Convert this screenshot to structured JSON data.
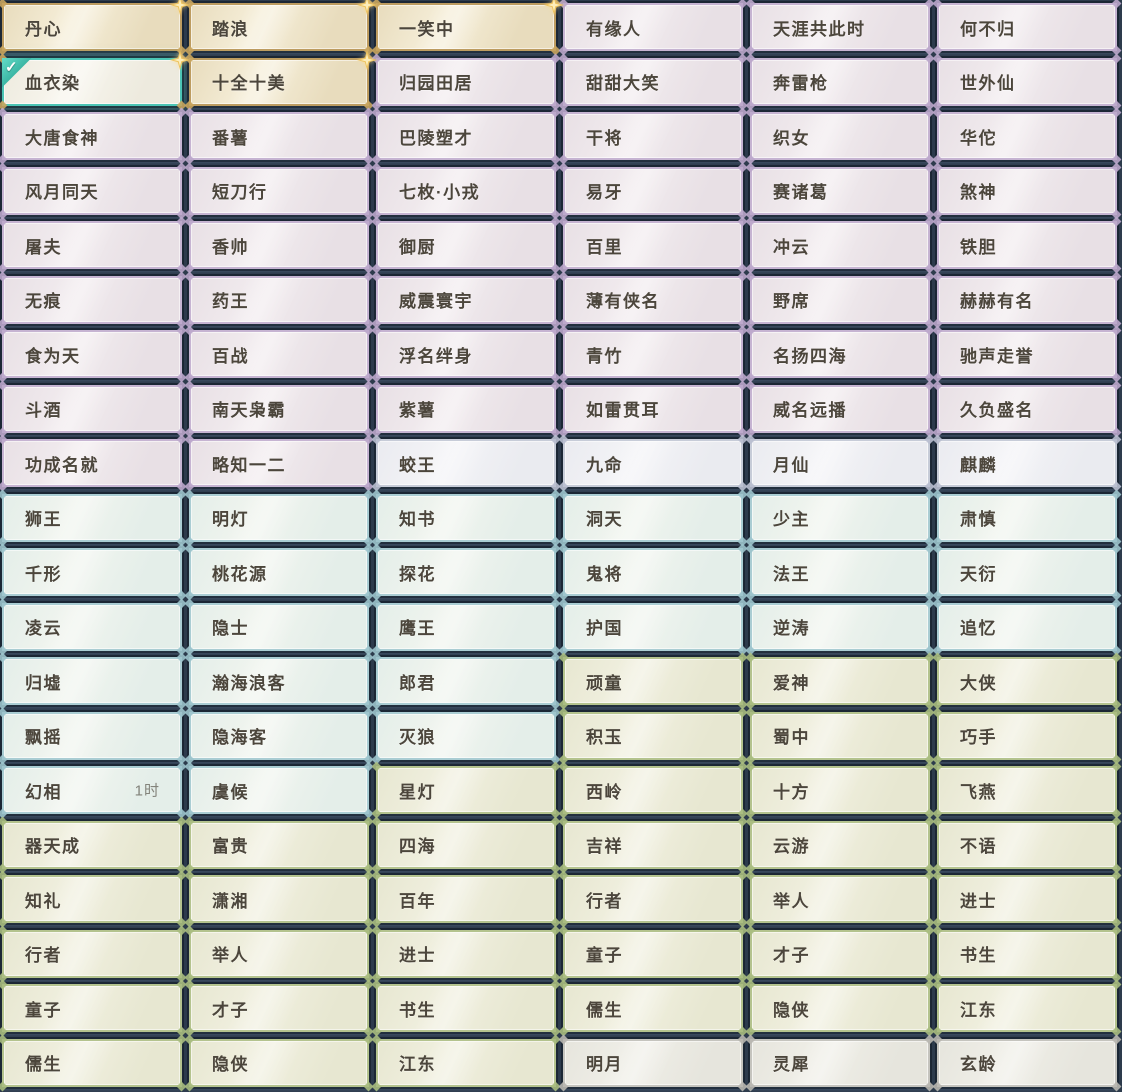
{
  "page": {
    "background": "#2d3b4c",
    "description_colors": {
      "gap_dark_edge": "#141f2b",
      "sheen_white": "#ffffff"
    }
  },
  "icons": {
    "check": "✓",
    "sparkle": "four-point-star"
  },
  "tiers": {
    "gold": {
      "border": "#bd9c60",
      "bg1": "#e8dcbd",
      "bg2": "#f6efda",
      "ornament": "#c9a55e"
    },
    "purple": {
      "border": "#c6b4d2",
      "bg1": "#e8e0e5",
      "bg2": "#f2ecef",
      "ornament": "#bba7cb"
    },
    "silver": {
      "border": "#c7ccd8",
      "bg1": "#eaebf0",
      "bg2": "#f4f4f7",
      "ornament": "#b9bfd0"
    },
    "blue": {
      "border": "#aacdd3",
      "bg1": "#e4eee9",
      "bg2": "#f1f5ef",
      "ornament": "#9cc4cc"
    },
    "green": {
      "border": "#b4c38e",
      "bg1": "#e7e7d1",
      "bg2": "#f1f0e0",
      "ornament": "#a9bc7f"
    },
    "gray": {
      "border": "#c5c4be",
      "bg1": "#e6e5dd",
      "bg2": "#f0efe8",
      "ornament": "#b8b7b0"
    }
  },
  "selected_border": "#4cc5b5",
  "selected_title": "血衣染",
  "grid": {
    "columns": 6,
    "rows": [
      [
        {
          "label": "丹心",
          "tier": "gold"
        },
        {
          "label": "踏浪",
          "tier": "gold"
        },
        {
          "label": "一笑中",
          "tier": "gold"
        },
        {
          "label": "有缘人",
          "tier": "purple"
        },
        {
          "label": "天涯共此时",
          "tier": "purple"
        },
        {
          "label": "何不归",
          "tier": "purple"
        }
      ],
      [
        {
          "label": "血衣染",
          "tier": "gold",
          "selected": true
        },
        {
          "label": "十全十美",
          "tier": "gold"
        },
        {
          "label": "归园田居",
          "tier": "purple"
        },
        {
          "label": "甜甜大笑",
          "tier": "purple"
        },
        {
          "label": "奔雷枪",
          "tier": "purple"
        },
        {
          "label": "世外仙",
          "tier": "purple"
        }
      ],
      [
        {
          "label": "大唐食神",
          "tier": "purple"
        },
        {
          "label": "番薯",
          "tier": "purple"
        },
        {
          "label": "巴陵塑才",
          "tier": "purple"
        },
        {
          "label": "干将",
          "tier": "purple"
        },
        {
          "label": "织女",
          "tier": "purple"
        },
        {
          "label": "华佗",
          "tier": "purple"
        }
      ],
      [
        {
          "label": "风月同天",
          "tier": "purple"
        },
        {
          "label": "短刀行",
          "tier": "purple"
        },
        {
          "label": "七枚·小戎",
          "tier": "purple"
        },
        {
          "label": "易牙",
          "tier": "purple"
        },
        {
          "label": "赛诸葛",
          "tier": "purple"
        },
        {
          "label": "煞神",
          "tier": "purple"
        }
      ],
      [
        {
          "label": "屠夫",
          "tier": "purple"
        },
        {
          "label": "香帅",
          "tier": "purple"
        },
        {
          "label": "御厨",
          "tier": "purple"
        },
        {
          "label": "百里",
          "tier": "purple"
        },
        {
          "label": "冲云",
          "tier": "purple"
        },
        {
          "label": "铁胆",
          "tier": "purple"
        }
      ],
      [
        {
          "label": "无痕",
          "tier": "purple"
        },
        {
          "label": "药王",
          "tier": "purple"
        },
        {
          "label": "威震寰宇",
          "tier": "purple"
        },
        {
          "label": "薄有侠名",
          "tier": "purple"
        },
        {
          "label": "野席",
          "tier": "purple"
        },
        {
          "label": "赫赫有名",
          "tier": "purple"
        }
      ],
      [
        {
          "label": "食为天",
          "tier": "purple"
        },
        {
          "label": "百战",
          "tier": "purple"
        },
        {
          "label": "浮名绊身",
          "tier": "purple"
        },
        {
          "label": "青竹",
          "tier": "purple"
        },
        {
          "label": "名扬四海",
          "tier": "purple"
        },
        {
          "label": "驰声走誉",
          "tier": "purple"
        }
      ],
      [
        {
          "label": "斗酒",
          "tier": "purple"
        },
        {
          "label": "南天枭霸",
          "tier": "purple"
        },
        {
          "label": "紫薯",
          "tier": "purple"
        },
        {
          "label": "如雷贯耳",
          "tier": "purple"
        },
        {
          "label": "威名远播",
          "tier": "purple"
        },
        {
          "label": "久负盛名",
          "tier": "purple"
        }
      ],
      [
        {
          "label": "功成名就",
          "tier": "purple"
        },
        {
          "label": "略知一二",
          "tier": "purple"
        },
        {
          "label": "蛟王",
          "tier": "silver"
        },
        {
          "label": "九命",
          "tier": "silver"
        },
        {
          "label": "月仙",
          "tier": "silver"
        },
        {
          "label": "麒麟",
          "tier": "silver"
        }
      ],
      [
        {
          "label": "狮王",
          "tier": "blue"
        },
        {
          "label": "明灯",
          "tier": "blue"
        },
        {
          "label": "知书",
          "tier": "blue"
        },
        {
          "label": "洞天",
          "tier": "blue"
        },
        {
          "label": "少主",
          "tier": "blue"
        },
        {
          "label": "肃慎",
          "tier": "blue"
        }
      ],
      [
        {
          "label": "千形",
          "tier": "blue"
        },
        {
          "label": "桃花源",
          "tier": "blue"
        },
        {
          "label": "探花",
          "tier": "blue"
        },
        {
          "label": "鬼将",
          "tier": "blue"
        },
        {
          "label": "法王",
          "tier": "blue"
        },
        {
          "label": "天衍",
          "tier": "blue"
        }
      ],
      [
        {
          "label": "凌云",
          "tier": "blue"
        },
        {
          "label": "隐士",
          "tier": "blue"
        },
        {
          "label": "鹰王",
          "tier": "blue"
        },
        {
          "label": "护国",
          "tier": "blue"
        },
        {
          "label": "逆涛",
          "tier": "blue"
        },
        {
          "label": "追忆",
          "tier": "blue"
        }
      ],
      [
        {
          "label": "归墟",
          "tier": "blue"
        },
        {
          "label": "瀚海浪客",
          "tier": "blue"
        },
        {
          "label": "郎君",
          "tier": "blue"
        },
        {
          "label": "顽童",
          "tier": "green"
        },
        {
          "label": "爱神",
          "tier": "green"
        },
        {
          "label": "大侠",
          "tier": "green"
        }
      ],
      [
        {
          "label": "飘摇",
          "tier": "blue"
        },
        {
          "label": "隐海客",
          "tier": "blue"
        },
        {
          "label": "灭狼",
          "tier": "blue"
        },
        {
          "label": "积玉",
          "tier": "green"
        },
        {
          "label": "蜀中",
          "tier": "green"
        },
        {
          "label": "巧手",
          "tier": "green"
        }
      ],
      [
        {
          "label": "幻相",
          "tier": "blue",
          "badge": "1时"
        },
        {
          "label": "虞候",
          "tier": "blue"
        },
        {
          "label": "星灯",
          "tier": "green"
        },
        {
          "label": "西岭",
          "tier": "green"
        },
        {
          "label": "十方",
          "tier": "green"
        },
        {
          "label": "飞燕",
          "tier": "green"
        }
      ],
      [
        {
          "label": "器天成",
          "tier": "green"
        },
        {
          "label": "富贵",
          "tier": "green"
        },
        {
          "label": "四海",
          "tier": "green"
        },
        {
          "label": "吉祥",
          "tier": "green"
        },
        {
          "label": "云游",
          "tier": "green"
        },
        {
          "label": "不语",
          "tier": "green"
        }
      ],
      [
        {
          "label": "知礼",
          "tier": "green"
        },
        {
          "label": "潇湘",
          "tier": "green"
        },
        {
          "label": "百年",
          "tier": "green"
        },
        {
          "label": "行者",
          "tier": "green"
        },
        {
          "label": "举人",
          "tier": "green"
        },
        {
          "label": "进士",
          "tier": "green"
        }
      ],
      [
        {
          "label": "行者",
          "tier": "green"
        },
        {
          "label": "举人",
          "tier": "green"
        },
        {
          "label": "进士",
          "tier": "green"
        },
        {
          "label": "童子",
          "tier": "green"
        },
        {
          "label": "才子",
          "tier": "green"
        },
        {
          "label": "书生",
          "tier": "green"
        }
      ],
      [
        {
          "label": "童子",
          "tier": "green"
        },
        {
          "label": "才子",
          "tier": "green"
        },
        {
          "label": "书生",
          "tier": "green"
        },
        {
          "label": "儒生",
          "tier": "green"
        },
        {
          "label": "隐侠",
          "tier": "green"
        },
        {
          "label": "江东",
          "tier": "green"
        }
      ],
      [
        {
          "label": "儒生",
          "tier": "green"
        },
        {
          "label": "隐侠",
          "tier": "green"
        },
        {
          "label": "江东",
          "tier": "green"
        },
        {
          "label": "明月",
          "tier": "gray"
        },
        {
          "label": "灵犀",
          "tier": "gray"
        },
        {
          "label": "玄龄",
          "tier": "gray"
        }
      ]
    ]
  }
}
